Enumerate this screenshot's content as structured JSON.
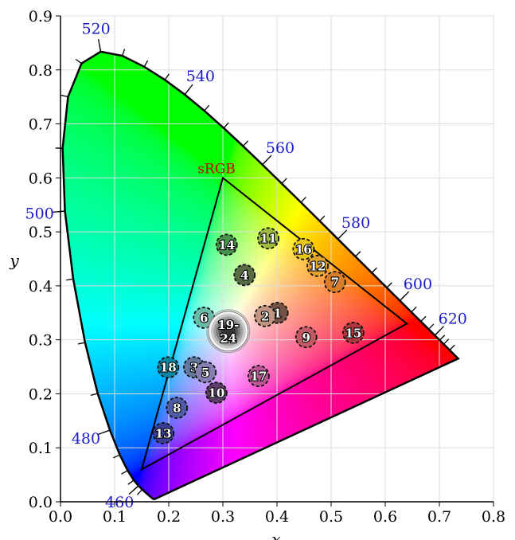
{
  "chart_data": {
    "type": "scatter",
    "xlabel": "x",
    "ylabel": "y",
    "xlim": [
      0,
      0.8
    ],
    "ylim": [
      0,
      0.9
    ],
    "xticks": [
      "0.0",
      "0.1",
      "0.2",
      "0.3",
      "0.4",
      "0.5",
      "0.6",
      "0.7",
      "0.8"
    ],
    "yticks": [
      "0.0",
      "0.1",
      "0.2",
      "0.3",
      "0.4",
      "0.5",
      "0.6",
      "0.7",
      "0.8",
      "0.9"
    ],
    "grid": true,
    "spectral_locus": [
      [
        380,
        0.1741,
        0.005
      ],
      [
        420,
        0.1714,
        0.0051
      ],
      [
        440,
        0.1644,
        0.0109
      ],
      [
        450,
        0.1566,
        0.0177
      ],
      [
        455,
        0.151,
        0.0227
      ],
      [
        460,
        0.144,
        0.0297
      ],
      [
        465,
        0.1355,
        0.0399
      ],
      [
        470,
        0.1241,
        0.0578
      ],
      [
        475,
        0.1096,
        0.0868
      ],
      [
        480,
        0.0913,
        0.1327
      ],
      [
        485,
        0.0687,
        0.2007
      ],
      [
        490,
        0.0454,
        0.295
      ],
      [
        495,
        0.0235,
        0.4127
      ],
      [
        500,
        0.0082,
        0.5384
      ],
      [
        505,
        0.0039,
        0.6548
      ],
      [
        510,
        0.0139,
        0.7502
      ],
      [
        515,
        0.0389,
        0.812
      ],
      [
        520,
        0.0743,
        0.8338
      ],
      [
        525,
        0.1142,
        0.8262
      ],
      [
        530,
        0.1547,
        0.8059
      ],
      [
        535,
        0.1929,
        0.7816
      ],
      [
        540,
        0.2296,
        0.7543
      ],
      [
        545,
        0.2658,
        0.7243
      ],
      [
        550,
        0.3016,
        0.6923
      ],
      [
        555,
        0.3373,
        0.6589
      ],
      [
        560,
        0.3731,
        0.6245
      ],
      [
        565,
        0.4087,
        0.5896
      ],
      [
        570,
        0.4441,
        0.5547
      ],
      [
        575,
        0.4788,
        0.5202
      ],
      [
        580,
        0.5125,
        0.4866
      ],
      [
        585,
        0.5448,
        0.4544
      ],
      [
        590,
        0.5752,
        0.4242
      ],
      [
        595,
        0.6029,
        0.3965
      ],
      [
        600,
        0.627,
        0.3725
      ],
      [
        605,
        0.6482,
        0.3514
      ],
      [
        610,
        0.6658,
        0.334
      ],
      [
        615,
        0.6801,
        0.3197
      ],
      [
        620,
        0.6915,
        0.3083
      ],
      [
        625,
        0.7006,
        0.2993
      ],
      [
        630,
        0.7079,
        0.292
      ],
      [
        640,
        0.719,
        0.2809
      ],
      [
        650,
        0.726,
        0.274
      ],
      [
        700,
        0.7347,
        0.2653
      ]
    ],
    "wavelength_labels": [
      {
        "text": "460",
        "nm": 460
      },
      {
        "text": "480",
        "nm": 480
      },
      {
        "text": "500",
        "nm": 500
      },
      {
        "text": "520",
        "nm": 520
      },
      {
        "text": "540",
        "nm": 540
      },
      {
        "text": "560",
        "nm": 560
      },
      {
        "text": "580",
        "nm": 580
      },
      {
        "text": "600",
        "nm": 600
      },
      {
        "text": "620",
        "nm": 620
      }
    ],
    "gamut": {
      "label": "sRGB",
      "label_color": "#cc0000",
      "red": [
        0.64,
        0.33
      ],
      "green": [
        0.3,
        0.6
      ],
      "blue": [
        0.15,
        0.06
      ]
    },
    "points": [
      {
        "label": "1",
        "x": 0.401,
        "y": 0.35,
        "color": "#735244"
      },
      {
        "label": "2",
        "x": 0.378,
        "y": 0.344,
        "color": "#c29682"
      },
      {
        "label": "3",
        "x": 0.247,
        "y": 0.249,
        "color": "#627a9d"
      },
      {
        "label": "4",
        "x": 0.34,
        "y": 0.42,
        "color": "#576c43"
      },
      {
        "label": "5",
        "x": 0.268,
        "y": 0.24,
        "color": "#8580b1"
      },
      {
        "label": "6",
        "x": 0.265,
        "y": 0.341,
        "color": "#67bdaa"
      },
      {
        "label": "7",
        "x": 0.507,
        "y": 0.407,
        "color": "#d67e2c"
      },
      {
        "label": "8",
        "x": 0.215,
        "y": 0.174,
        "color": "#505ba6"
      },
      {
        "label": "9",
        "x": 0.454,
        "y": 0.305,
        "color": "#c15a63"
      },
      {
        "label": "10",
        "x": 0.288,
        "y": 0.202,
        "color": "#5e3c6c"
      },
      {
        "label": "11",
        "x": 0.384,
        "y": 0.488,
        "color": "#9dbc40"
      },
      {
        "label": "12",
        "x": 0.475,
        "y": 0.437,
        "color": "#e0a32e"
      },
      {
        "label": "13",
        "x": 0.19,
        "y": 0.127,
        "color": "#383d96"
      },
      {
        "label": "14",
        "x": 0.307,
        "y": 0.476,
        "color": "#469449"
      },
      {
        "label": "15",
        "x": 0.541,
        "y": 0.313,
        "color": "#af363c"
      },
      {
        "label": "16",
        "x": 0.449,
        "y": 0.468,
        "color": "#e7c71f"
      },
      {
        "label": "17",
        "x": 0.366,
        "y": 0.233,
        "color": "#bb5695"
      },
      {
        "label": "18",
        "x": 0.199,
        "y": 0.249,
        "color": "#0885a1"
      }
    ],
    "neutral_point": {
      "label_top": "19-",
      "label_bottom": "24",
      "x": 0.31,
      "y": 0.316,
      "colors": [
        "#f3f3f2",
        "#c8c8c8",
        "#a0a0a0",
        "#7a7a79",
        "#555555",
        "#343434"
      ]
    }
  }
}
